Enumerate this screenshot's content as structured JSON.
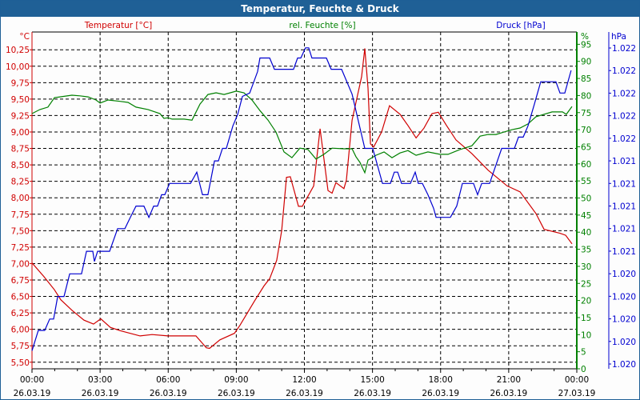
{
  "window": {
    "title": "Temperatur, Feuchte & Druck"
  },
  "colors": {
    "temperature": "#d00000",
    "humidity": "#008000",
    "pressure": "#0000d0",
    "titlebar": "#1f6096",
    "grid": "#000000"
  },
  "chart_data": {
    "type": "line",
    "title": "Temperatur, Feuchte & Druck",
    "xlabel": "",
    "x_unit": "hours since 26.03.19 00:00",
    "xlim": [
      0,
      24
    ],
    "x_ticks": [
      {
        "time": "00:00",
        "date": "26.03.19",
        "h": 0
      },
      {
        "time": "03:00",
        "date": "26.03.19",
        "h": 3
      },
      {
        "time": "06:00",
        "date": "26.03.19",
        "h": 6
      },
      {
        "time": "09:00",
        "date": "26.03.19",
        "h": 9
      },
      {
        "time": "12:00",
        "date": "26.03.19",
        "h": 12
      },
      {
        "time": "15:00",
        "date": "26.03.19",
        "h": 15
      },
      {
        "time": "18:00",
        "date": "26.03.19",
        "h": 18
      },
      {
        "time": "21:00",
        "date": "26.03.19",
        "h": 21
      },
      {
        "time": "00:00",
        "date": "27.03.19",
        "h": 24
      }
    ],
    "grid": true,
    "axes": {
      "temperature": {
        "label": "Temperatur [°C]",
        "unit": "°C",
        "ylim": [
          5.4,
          10.52
        ],
        "ticks": [
          "10,25",
          "10,00",
          "9,75",
          "9,50",
          "9,25",
          "9,00",
          "8,75",
          "8,50",
          "8,25",
          "8,00",
          "7,75",
          "7,50",
          "7,25",
          "7,00",
          "6,75",
          "6,50",
          "6,25",
          "6,00",
          "5,75",
          "5,50"
        ]
      },
      "humidity": {
        "label": "rel. Feuchte [%]",
        "unit": "%",
        "ylim": [
          0,
          98.6
        ],
        "ticks": [
          "95",
          "90",
          "85",
          "80",
          "75",
          "70",
          "65",
          "60",
          "55",
          "50",
          "45",
          "40",
          "35",
          "30",
          "25",
          "20",
          "15",
          "10",
          "5",
          "0"
        ]
      },
      "pressure": {
        "label": "Druck [hPa]",
        "unit": "hPa",
        "ylim": [
          1019.51,
          1022.49
        ],
        "ticks": [
          "1.022",
          "1.022",
          "1.022",
          "1.022",
          "1.022",
          "1.021",
          "1.021",
          "1.021",
          "1.021",
          "1.021",
          "1.020",
          "1.020",
          "1.020",
          "1.020",
          "1.020"
        ]
      }
    },
    "series": [
      {
        "name": "Temperatur [°C]",
        "axis": "temperature",
        "points": [
          [
            0,
            7.01
          ],
          [
            0.53,
            6.8
          ],
          [
            0.99,
            6.6
          ],
          [
            1.27,
            6.45
          ],
          [
            1.76,
            6.29
          ],
          [
            2.29,
            6.14
          ],
          [
            2.71,
            6.08
          ],
          [
            3.03,
            6.16
          ],
          [
            3.45,
            6.03
          ],
          [
            3.88,
            5.98
          ],
          [
            4.76,
            5.9
          ],
          [
            5.29,
            5.92
          ],
          [
            5.99,
            5.9
          ],
          [
            6.7,
            5.9
          ],
          [
            7.22,
            5.9
          ],
          [
            7.68,
            5.72
          ],
          [
            7.82,
            5.71
          ],
          [
            8.28,
            5.84
          ],
          [
            8.92,
            5.94
          ],
          [
            9.16,
            6.06
          ],
          [
            9.8,
            6.43
          ],
          [
            10.22,
            6.66
          ],
          [
            10.47,
            6.77
          ],
          [
            10.78,
            7.05
          ],
          [
            11.0,
            7.5
          ],
          [
            11.21,
            8.31
          ],
          [
            11.38,
            8.32
          ],
          [
            11.74,
            7.87
          ],
          [
            11.91,
            7.87
          ],
          [
            12.41,
            8.18
          ],
          [
            12.69,
            9.05
          ],
          [
            13.04,
            8.11
          ],
          [
            13.22,
            8.07
          ],
          [
            13.39,
            8.23
          ],
          [
            13.74,
            8.14
          ],
          [
            13.85,
            8.27
          ],
          [
            14.1,
            9.18
          ],
          [
            14.52,
            9.84
          ],
          [
            14.66,
            10.27
          ],
          [
            14.8,
            9.67
          ],
          [
            14.91,
            8.82
          ],
          [
            15.05,
            8.77
          ],
          [
            15.4,
            9.0
          ],
          [
            15.75,
            9.4
          ],
          [
            16.21,
            9.27
          ],
          [
            16.56,
            9.1
          ],
          [
            16.92,
            8.91
          ],
          [
            17.27,
            9.06
          ],
          [
            17.62,
            9.28
          ],
          [
            17.9,
            9.3
          ],
          [
            18.26,
            9.1
          ],
          [
            18.68,
            8.88
          ],
          [
            19.38,
            8.67
          ],
          [
            20.09,
            8.42
          ],
          [
            20.93,
            8.18
          ],
          [
            21.5,
            8.09
          ],
          [
            22.2,
            7.76
          ],
          [
            22.56,
            7.52
          ],
          [
            23.26,
            7.46
          ],
          [
            23.51,
            7.43
          ],
          [
            23.79,
            7.3
          ]
        ]
      },
      {
        "name": "rel. Feuchte [%]",
        "axis": "humidity",
        "points": [
          [
            0,
            74.7
          ],
          [
            0.35,
            75.9
          ],
          [
            0.7,
            76.6
          ],
          [
            0.99,
            79.4
          ],
          [
            1.23,
            79.6
          ],
          [
            1.76,
            80.1
          ],
          [
            2.11,
            79.9
          ],
          [
            2.47,
            79.6
          ],
          [
            2.82,
            78.7
          ],
          [
            3.0,
            77.8
          ],
          [
            3.35,
            78.7
          ],
          [
            3.88,
            78.3
          ],
          [
            4.23,
            78.0
          ],
          [
            4.58,
            76.6
          ],
          [
            5.11,
            75.9
          ],
          [
            5.64,
            74.7
          ],
          [
            5.81,
            73.3
          ],
          [
            5.99,
            73.5
          ],
          [
            6.17,
            73.1
          ],
          [
            6.7,
            73.1
          ],
          [
            7.05,
            72.8
          ],
          [
            7.4,
            77.5
          ],
          [
            7.75,
            80.3
          ],
          [
            8.11,
            80.8
          ],
          [
            8.46,
            80.3
          ],
          [
            9.0,
            81.3
          ],
          [
            9.34,
            80.8
          ],
          [
            9.69,
            78.7
          ],
          [
            10.04,
            75.6
          ],
          [
            10.4,
            72.8
          ],
          [
            10.75,
            69.3
          ],
          [
            11.1,
            63.5
          ],
          [
            11.45,
            61.8
          ],
          [
            11.8,
            64.6
          ],
          [
            12.16,
            64.2
          ],
          [
            12.51,
            61.4
          ],
          [
            12.86,
            62.8
          ],
          [
            13.22,
            64.6
          ],
          [
            13.74,
            64.4
          ],
          [
            14.1,
            64.4
          ],
          [
            14.27,
            62.1
          ],
          [
            14.45,
            60.4
          ],
          [
            14.66,
            57.4
          ],
          [
            14.8,
            61.1
          ],
          [
            15.15,
            62.5
          ],
          [
            15.51,
            63.5
          ],
          [
            15.86,
            61.8
          ],
          [
            16.21,
            63.2
          ],
          [
            16.56,
            63.9
          ],
          [
            16.92,
            62.5
          ],
          [
            17.44,
            63.5
          ],
          [
            17.97,
            62.8
          ],
          [
            18.33,
            62.8
          ],
          [
            18.85,
            64.2
          ],
          [
            19.38,
            65.3
          ],
          [
            19.74,
            68.1
          ],
          [
            20.09,
            68.6
          ],
          [
            20.44,
            68.6
          ],
          [
            20.79,
            69.3
          ],
          [
            21.15,
            70.0
          ],
          [
            21.5,
            70.5
          ],
          [
            21.85,
            71.7
          ],
          [
            22.2,
            73.8
          ],
          [
            22.91,
            75.2
          ],
          [
            23.37,
            75.2
          ],
          [
            23.54,
            74.5
          ],
          [
            23.79,
            76.8
          ]
        ]
      },
      {
        "name": "Druck [hPa]",
        "axis": "pressure",
        "points": [
          [
            0,
            1019.67
          ],
          [
            0.28,
            1019.85
          ],
          [
            0.56,
            1019.85
          ],
          [
            0.78,
            1019.95
          ],
          [
            0.95,
            1019.95
          ],
          [
            1.13,
            1020.15
          ],
          [
            1.41,
            1020.15
          ],
          [
            1.66,
            1020.35
          ],
          [
            2.18,
            1020.35
          ],
          [
            2.4,
            1020.55
          ],
          [
            2.68,
            1020.55
          ],
          [
            2.75,
            1020.46
          ],
          [
            2.89,
            1020.55
          ],
          [
            3.42,
            1020.55
          ],
          [
            3.77,
            1020.75
          ],
          [
            4.09,
            1020.75
          ],
          [
            4.33,
            1020.85
          ],
          [
            4.58,
            1020.95
          ],
          [
            4.93,
            1020.95
          ],
          [
            5.15,
            1020.85
          ],
          [
            5.36,
            1020.95
          ],
          [
            5.53,
            1020.95
          ],
          [
            5.71,
            1021.05
          ],
          [
            5.85,
            1021.05
          ],
          [
            6.06,
            1021.15
          ],
          [
            6.98,
            1021.15
          ],
          [
            7.26,
            1021.25
          ],
          [
            7.51,
            1021.05
          ],
          [
            7.75,
            1021.05
          ],
          [
            8.04,
            1021.35
          ],
          [
            8.21,
            1021.35
          ],
          [
            8.39,
            1021.46
          ],
          [
            8.56,
            1021.46
          ],
          [
            8.85,
            1021.66
          ],
          [
            9.06,
            1021.76
          ],
          [
            9.27,
            1021.92
          ],
          [
            9.59,
            1021.95
          ],
          [
            9.94,
            1022.14
          ],
          [
            10.04,
            1022.26
          ],
          [
            10.47,
            1022.26
          ],
          [
            10.68,
            1022.16
          ],
          [
            11.52,
            1022.16
          ],
          [
            11.7,
            1022.26
          ],
          [
            11.84,
            1022.26
          ],
          [
            12.05,
            1022.35
          ],
          [
            12.19,
            1022.35
          ],
          [
            12.33,
            1022.26
          ],
          [
            12.97,
            1022.26
          ],
          [
            13.18,
            1022.16
          ],
          [
            13.64,
            1022.16
          ],
          [
            14.1,
            1021.94
          ],
          [
            14.45,
            1021.64
          ],
          [
            14.66,
            1021.46
          ],
          [
            15.01,
            1021.46
          ],
          [
            15.44,
            1021.15
          ],
          [
            15.79,
            1021.15
          ],
          [
            15.96,
            1021.25
          ],
          [
            16.11,
            1021.25
          ],
          [
            16.28,
            1021.15
          ],
          [
            16.67,
            1021.15
          ],
          [
            16.88,
            1021.25
          ],
          [
            17.02,
            1021.15
          ],
          [
            17.2,
            1021.15
          ],
          [
            17.44,
            1021.05
          ],
          [
            17.69,
            1020.93
          ],
          [
            17.8,
            1020.85
          ],
          [
            18.43,
            1020.85
          ],
          [
            18.71,
            1020.95
          ],
          [
            18.96,
            1021.15
          ],
          [
            19.45,
            1021.15
          ],
          [
            19.63,
            1021.05
          ],
          [
            19.81,
            1021.15
          ],
          [
            20.16,
            1021.15
          ],
          [
            20.69,
            1021.46
          ],
          [
            21.25,
            1021.46
          ],
          [
            21.43,
            1021.56
          ],
          [
            21.64,
            1021.56
          ],
          [
            21.85,
            1021.66
          ],
          [
            22.13,
            1021.85
          ],
          [
            22.41,
            1022.05
          ],
          [
            23.08,
            1022.05
          ],
          [
            23.26,
            1021.95
          ],
          [
            23.47,
            1021.95
          ],
          [
            23.75,
            1022.15
          ]
        ]
      }
    ]
  }
}
